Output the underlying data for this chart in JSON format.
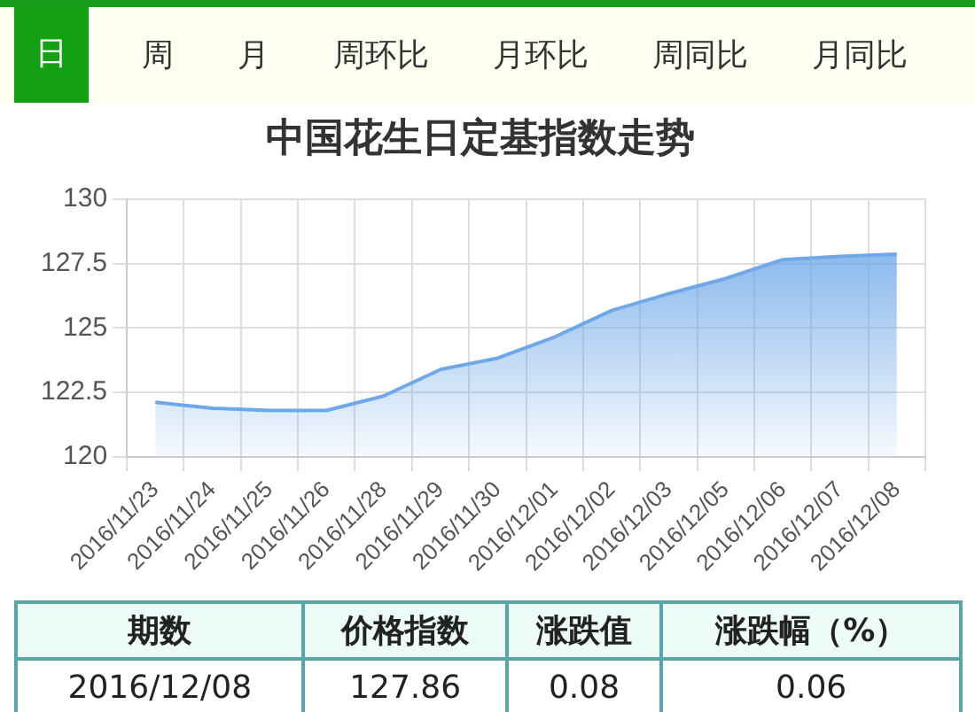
{
  "chart_data": {
    "type": "area",
    "title": "中国花生日定基指数走势",
    "categories": [
      "2016/11/23",
      "2016/11/24",
      "2016/11/25",
      "2016/11/26",
      "2016/11/28",
      "2016/11/29",
      "2016/11/30",
      "2016/12/01",
      "2016/12/02",
      "2016/12/03",
      "2016/12/05",
      "2016/12/06",
      "2016/12/07",
      "2016/12/08"
    ],
    "series": [
      {
        "color": "#6fa8e8",
        "values": [
          122.12,
          121.89,
          121.8,
          121.8,
          122.36,
          123.39,
          123.83,
          124.65,
          125.68,
          126.33,
          126.92,
          127.65,
          127.78,
          127.86
        ]
      }
    ],
    "ylim": [
      120,
      130
    ],
    "yticks": [
      120,
      122.5,
      125,
      127.5,
      130
    ],
    "grid": true,
    "marker": "none",
    "annotations": [
      "日",
      "周",
      "月",
      "周环比",
      "月环比",
      "周同比",
      "月同比",
      "期数",
      "价格指数",
      "涨跌值",
      "涨跌幅（%）",
      "2016/12/08",
      "127.86",
      "0.08",
      "0.06"
    ]
  }
}
